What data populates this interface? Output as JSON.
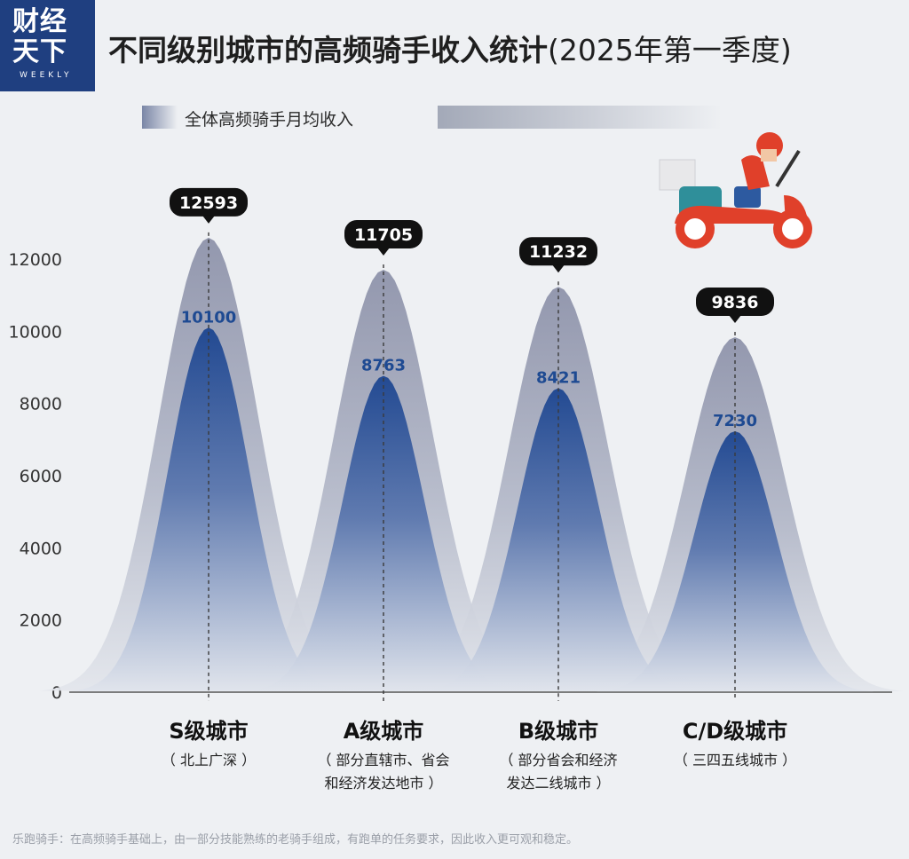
{
  "logo": {
    "line1": "财经",
    "line2": "天下",
    "line3": "WEEKLY"
  },
  "title": {
    "main": "不同级别城市的高频骑手收入统计",
    "suffix": "(2025年第一季度)"
  },
  "legend_label": "全体高频骑手月均收入",
  "footnote": "乐跑骑手：在高频骑手基础上，由一部分技能熟练的老骑手组成，有跑单的任务要求，因此收入更可观和稳定。",
  "colors": {
    "outer": "#8a8fa6",
    "inner": "#1e4a92",
    "badge": "#111111",
    "inner_label": "#1e4a92"
  },
  "chart_data": {
    "type": "area",
    "categories": [
      "S级城市",
      "A级城市",
      "B级城市",
      "C/D级城市"
    ],
    "category_notes": [
      [
        "（ 北上广深 ）"
      ],
      [
        "（ 部分直辖市、省会",
        "和经济发达地市 ）"
      ],
      [
        "（ 部分省会和经济",
        "发达二线城市 ）"
      ],
      [
        "（ 三四五线城市 ）"
      ]
    ],
    "series": [
      {
        "name": "全体高频骑手月均收入",
        "values": [
          12593,
          11705,
          11232,
          9836
        ]
      },
      {
        "values": [
          10100,
          8763,
          8421,
          7230
        ]
      }
    ],
    "yticks": [
      0,
      2000,
      4000,
      6000,
      8000,
      10000,
      12000
    ],
    "ylim": [
      0,
      12000
    ]
  }
}
